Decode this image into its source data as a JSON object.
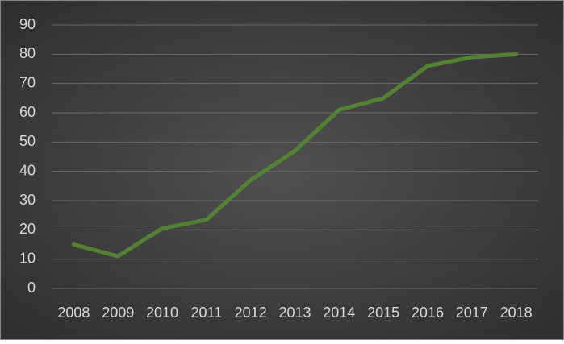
{
  "chart_data": {
    "type": "line",
    "categories": [
      "2008",
      "2009",
      "2010",
      "2011",
      "2012",
      "2013",
      "2014",
      "2015",
      "2016",
      "2017",
      "2018"
    ],
    "values": [
      15,
      11,
      20.5,
      23.5,
      37,
      47,
      61,
      65,
      76,
      79,
      80
    ],
    "color": "#548235",
    "ylim": [
      0,
      90
    ],
    "yticks": [
      0,
      10,
      20,
      30,
      40,
      50,
      60,
      70,
      80,
      90
    ],
    "grid": true
  }
}
